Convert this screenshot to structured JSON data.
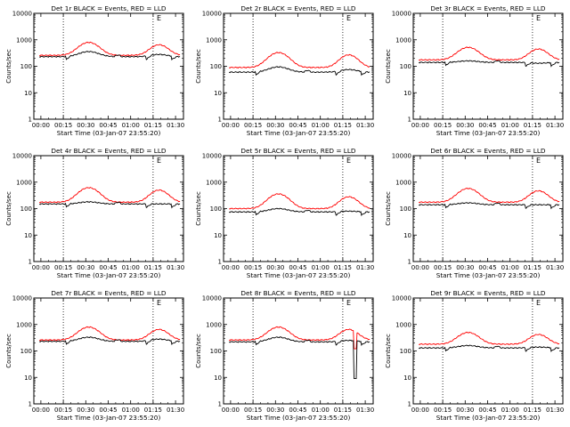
{
  "chart_data": {
    "type": "line",
    "xaxis": {
      "label": "Start Time (03-Jan-07 23:55:20)",
      "ticks": [
        "00:00",
        "00:15",
        "00:30",
        "00:45",
        "01:00",
        "01:15",
        "01:30"
      ],
      "tick_minutes": [
        0,
        15,
        30,
        45,
        60,
        75,
        90
      ],
      "range_minutes": [
        -4.7,
        95.3
      ]
    },
    "yaxis": {
      "label": "Counts/sec",
      "scale": "log",
      "range": [
        1,
        10000
      ],
      "ticks": [
        "1",
        "10",
        "100",
        "1000",
        "10000"
      ]
    },
    "marker_lines_minutes": [
      15,
      75
    ],
    "top_right_glyph": "E",
    "legend_note": "BLACK = Events, RED = LLD",
    "panels": [
      {
        "title": "Det 1r BLACK = Events, RED = LLD",
        "red": {
          "base": 260,
          "peak": 800,
          "peak2": 650
        },
        "black": {
          "base": 230,
          "peak": 360,
          "peak2": 280
        }
      },
      {
        "title": "Det 2r BLACK = Events, RED = LLD",
        "red": {
          "base": 90,
          "peak": 330,
          "peak2": 270
        },
        "black": {
          "base": 60,
          "peak": 95,
          "peak2": 75
        }
      },
      {
        "title": "Det 3r BLACK = Events, RED = LLD",
        "red": {
          "base": 175,
          "peak": 520,
          "peak2": 450
        },
        "black": {
          "base": 140,
          "peak": 160,
          "peak2": 130
        }
      },
      {
        "title": "Det 4r BLACK = Events, RED = LLD",
        "red": {
          "base": 175,
          "peak": 620,
          "peak2": 500
        },
        "black": {
          "base": 150,
          "peak": 180,
          "peak2": 150
        }
      },
      {
        "title": "Det 5r BLACK = Events, RED = LLD",
        "red": {
          "base": 100,
          "peak": 360,
          "peak2": 280
        },
        "black": {
          "base": 75,
          "peak": 100,
          "peak2": 80
        }
      },
      {
        "title": "Det 6r BLACK = Events, RED = LLD",
        "red": {
          "base": 175,
          "peak": 580,
          "peak2": 470
        },
        "black": {
          "base": 140,
          "peak": 165,
          "peak2": 140
        }
      },
      {
        "title": "Det 7r BLACK = Events, RED = LLD",
        "red": {
          "base": 260,
          "peak": 800,
          "peak2": 650
        },
        "black": {
          "base": 230,
          "peak": 330,
          "peak2": 280
        }
      },
      {
        "title": "Det 8r BLACK = Events, RED = LLD",
        "red": {
          "base": 260,
          "peak": 800,
          "peak2": 650
        },
        "black": {
          "base": 220,
          "peak": 330,
          "peak2": 250
        }
      },
      {
        "title": "Det 9r BLACK = Events, RED = LLD",
        "red": {
          "base": 180,
          "peak": 500,
          "peak2": 420
        },
        "black": {
          "base": 130,
          "peak": 160,
          "peak2": 140
        }
      }
    ],
    "series": [
      {
        "name": "Events",
        "color": "#000000"
      },
      {
        "name": "LLD",
        "color": "#ff0000"
      }
    ]
  }
}
